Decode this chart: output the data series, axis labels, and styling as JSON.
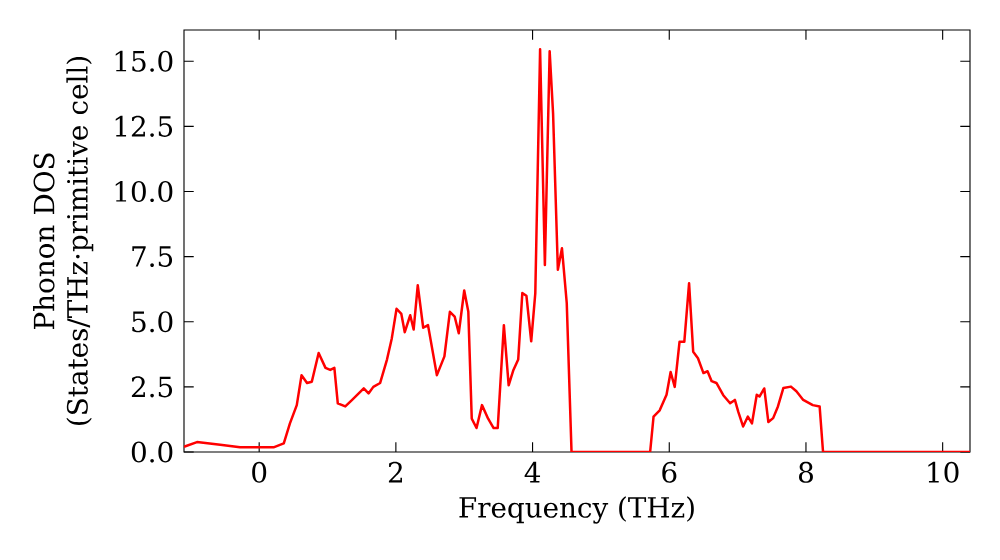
{
  "chart_data": {
    "type": "line",
    "xlabel": "Frequency (THz)",
    "ylabel": "Phonon DOS (States/THz·primitive cell)",
    "xlim": [
      -1.1,
      10.4
    ],
    "ylim": [
      0,
      16.2
    ],
    "xticks": [
      0,
      2,
      4,
      6,
      8,
      10
    ],
    "yticks": [
      {
        "value": 0,
        "label": "0.0"
      },
      {
        "value": 2.5,
        "label": "2.5"
      },
      {
        "value": 5,
        "label": "5.0"
      },
      {
        "value": 7.5,
        "label": "7.5"
      },
      {
        "value": 10,
        "label": "10.0"
      },
      {
        "value": 12.5,
        "label": "12.5"
      },
      {
        "value": 15,
        "label": "15.0"
      }
    ],
    "series": [
      {
        "color": "#ff0000",
        "x": [
          -1.1,
          -0.91,
          -0.57,
          -0.28,
          0.21,
          0.36,
          0.45,
          0.55,
          0.62,
          0.7,
          0.77,
          0.87,
          0.97,
          1.04,
          1.1,
          1.15,
          1.26,
          1.36,
          1.53,
          1.6,
          1.67,
          1.77,
          1.87,
          1.94,
          2.01,
          2.08,
          2.13,
          2.21,
          2.26,
          2.32,
          2.4,
          2.47,
          2.6,
          2.71,
          2.79,
          2.86,
          2.92,
          3.0,
          3.06,
          3.11,
          3.18,
          3.26,
          3.35,
          3.43,
          3.49,
          3.58,
          3.65,
          3.72,
          3.79,
          3.85,
          3.91,
          3.98,
          4.04,
          4.11,
          4.18,
          4.25,
          4.3,
          4.37,
          4.43,
          4.5,
          4.57,
          5.72,
          5.77,
          5.86,
          5.96,
          6.02,
          6.08,
          6.15,
          6.22,
          6.29,
          6.35,
          6.42,
          6.5,
          6.56,
          6.62,
          6.69,
          6.79,
          6.89,
          6.96,
          7.01,
          7.08,
          7.15,
          7.21,
          7.28,
          7.32,
          7.39,
          7.45,
          7.52,
          7.59,
          7.67,
          7.78,
          7.86,
          7.96,
          8.1,
          8.2,
          8.25,
          10.4
        ],
        "values": [
          0.2,
          0.38,
          0.28,
          0.18,
          0.18,
          0.33,
          1.1,
          1.8,
          2.95,
          2.65,
          2.7,
          3.8,
          3.23,
          3.15,
          3.23,
          1.87,
          1.75,
          2.0,
          2.44,
          2.25,
          2.5,
          2.65,
          3.55,
          4.36,
          5.5,
          5.3,
          4.6,
          5.25,
          4.7,
          6.4,
          4.77,
          4.87,
          2.95,
          3.67,
          5.38,
          5.2,
          4.56,
          6.2,
          5.38,
          1.28,
          0.92,
          1.8,
          1.28,
          0.92,
          0.92,
          4.87,
          2.56,
          3.15,
          3.55,
          6.1,
          6.0,
          4.25,
          6.1,
          15.46,
          7.18,
          15.38,
          13.0,
          7.0,
          7.82,
          5.72,
          0.0,
          0.0,
          1.36,
          1.6,
          2.2,
          3.07,
          2.5,
          4.23,
          4.23,
          6.48,
          3.85,
          3.6,
          3.03,
          3.1,
          2.72,
          2.65,
          2.18,
          1.87,
          2.0,
          1.54,
          0.98,
          1.36,
          1.1,
          2.2,
          2.13,
          2.44,
          1.15,
          1.3,
          1.75,
          2.46,
          2.51,
          2.33,
          2.0,
          1.8,
          1.75,
          0.0,
          0.0
        ]
      }
    ]
  }
}
